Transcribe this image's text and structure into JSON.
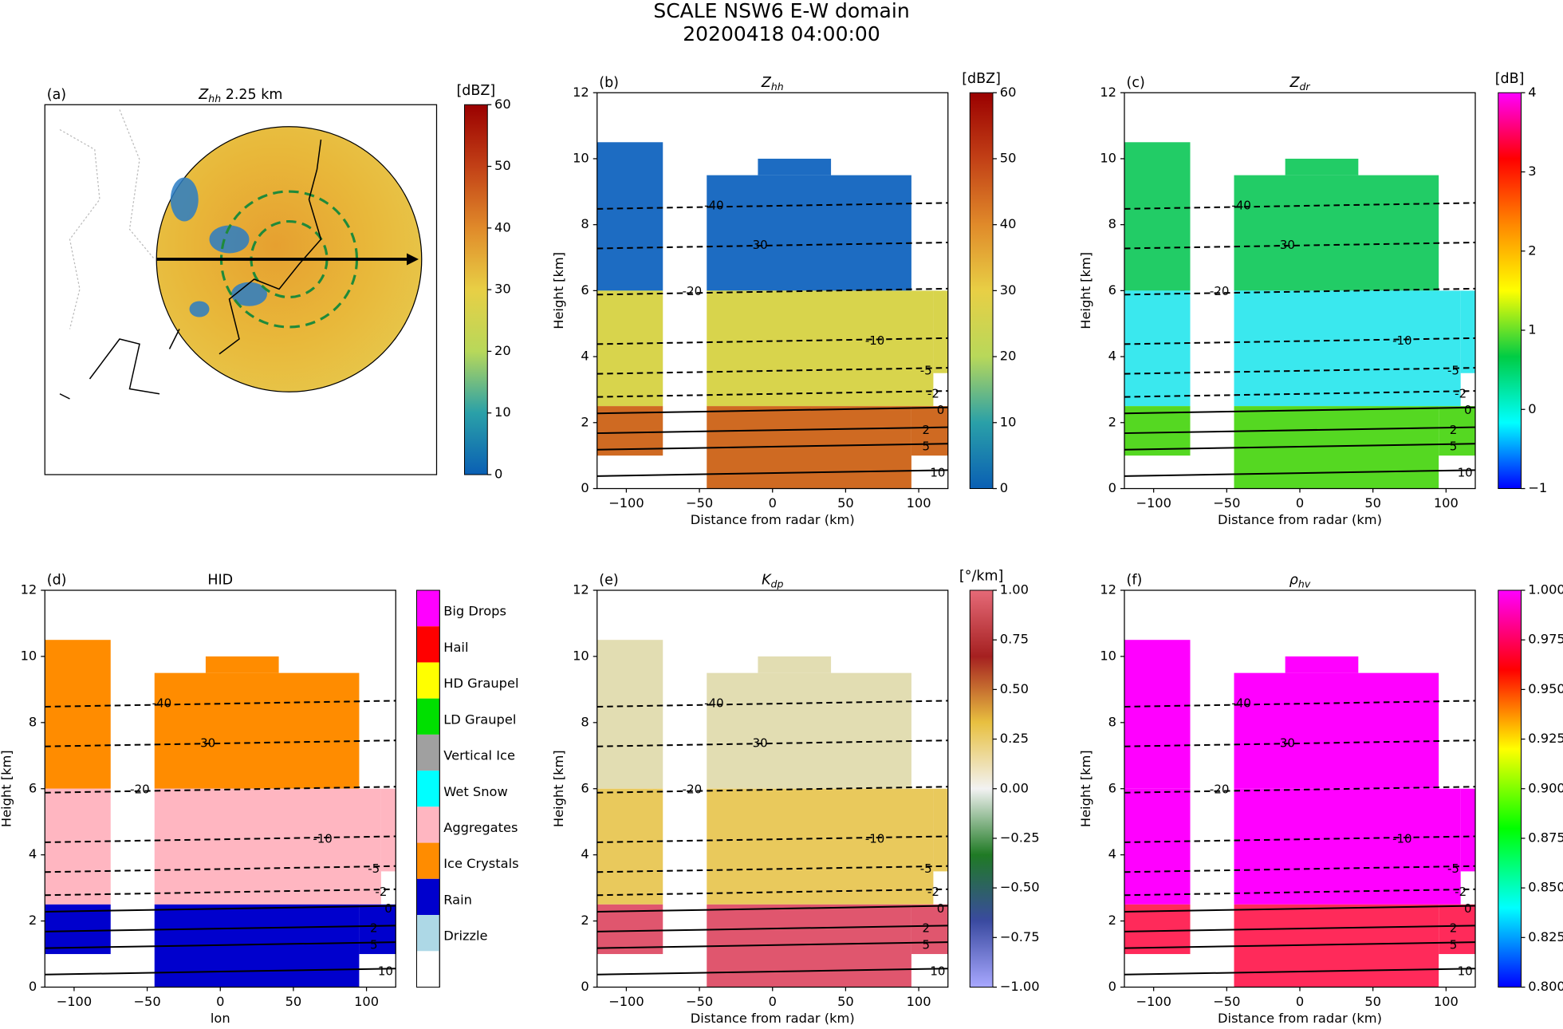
{
  "title": "SCALE NSW6 E-W domain",
  "subtitle": "20200418 04:00:00",
  "contours": [
    {
      "level": -40,
      "height": 8.6
    },
    {
      "level": -30,
      "height": 7.4
    },
    {
      "level": -20,
      "height": 6.0
    },
    {
      "level": -10,
      "height": 4.5
    },
    {
      "level": -5,
      "height": 3.6
    },
    {
      "level": -2,
      "height": 2.9
    },
    {
      "level": 0,
      "height": 2.4
    },
    {
      "level": 2,
      "height": 1.8
    },
    {
      "level": 5,
      "height": 1.3
    },
    {
      "level": 10,
      "height": 0.5
    }
  ],
  "chart_data": [
    {
      "type": "map",
      "label": "(a)",
      "title": "Z",
      "title_sub": "hh",
      "title_after": " 2.25 km",
      "colorbar": {
        "unit": "[dBZ]",
        "lim": [
          0,
          60
        ],
        "ticks": [
          0,
          10,
          20,
          30,
          40,
          50,
          60
        ],
        "colormap": [
          "#0a5fb4",
          "#2aa0a8",
          "#b8d85a",
          "#e8cf45",
          "#e08a2a",
          "#c24016",
          "#9a0000"
        ]
      }
    },
    {
      "type": "heatmap",
      "label": "(b)",
      "title": "Z",
      "title_sub": "hh",
      "xlabel": "Distance from radar (km)",
      "ylabel": "Height [km]",
      "xlim": [
        -120,
        120
      ],
      "xticks": [
        {
          "value": -100,
          "label": "−100"
        },
        {
          "value": -50,
          "label": "−50"
        },
        0,
        50,
        100
      ],
      "ylim": [
        0,
        12
      ],
      "yticks": [
        0,
        2,
        4,
        6,
        8,
        10,
        12
      ],
      "field_colors": [
        "#1d6cc2",
        "#d8d44c",
        "#cf6a22"
      ],
      "colorbar": {
        "unit": "[dBZ]",
        "lim": [
          0,
          60
        ],
        "ticks": [
          0,
          10,
          20,
          30,
          40,
          50,
          60
        ],
        "colormap": [
          "#0a5fb4",
          "#2aa0a8",
          "#b8d85a",
          "#e8cf45",
          "#e08a2a",
          "#c24016",
          "#9a0000"
        ]
      }
    },
    {
      "type": "heatmap",
      "label": "(c)",
      "title": "Z",
      "title_sub": "dr",
      "xlabel": "Distance from radar (km)",
      "ylabel": "Height [km]",
      "xlim": [
        -120,
        120
      ],
      "xticks": [
        {
          "value": -100,
          "label": "−100"
        },
        {
          "value": -50,
          "label": "−50"
        },
        0,
        50,
        100
      ],
      "ylim": [
        0,
        12
      ],
      "yticks": [
        0,
        2,
        4,
        6,
        8,
        10,
        12
      ],
      "field_colors": [
        "#22cc66",
        "#3ae8ee",
        "#55d822"
      ],
      "colorbar": {
        "unit": "[dB]",
        "lim": [
          -1,
          4
        ],
        "ticks": [
          {
            "value": -1,
            "label": "−1"
          },
          0,
          1,
          2,
          3,
          4
        ],
        "colormap": [
          "#0000ff",
          "#00ffff",
          "#00cc44",
          "#ffff00",
          "#ff8800",
          "#ff0000",
          "#ff00ff"
        ]
      }
    },
    {
      "type": "hid",
      "label": "(d)",
      "title": "HID",
      "xlabel": "lon",
      "ylabel": "Height [km]",
      "xlim": [
        -120,
        120
      ],
      "xticks": [
        {
          "value": -100,
          "label": "−100"
        },
        {
          "value": -50,
          "label": "−50"
        },
        0,
        50,
        100
      ],
      "ylim": [
        0,
        12
      ],
      "yticks": [
        0,
        2,
        4,
        6,
        8,
        10,
        12
      ],
      "field_colors": [
        "#ff8c00",
        "#ffb6c1",
        "#0000cd"
      ],
      "legend": {
        "categories": [
          "Big Drops",
          "Hail",
          "HD Graupel",
          "LD Graupel",
          "Vertical Ice",
          "Wet Snow",
          "Aggregates",
          "Ice Crystals",
          "Rain",
          "Drizzle"
        ],
        "colors": [
          "#ff00ff",
          "#ff0000",
          "#ffff00",
          "#00e000",
          "#a0a0a0",
          "#00ffff",
          "#ffb6c1",
          "#ff8c00",
          "#0000cd",
          "#add8e6"
        ]
      }
    },
    {
      "type": "heatmap",
      "label": "(e)",
      "title": "K",
      "title_sub": "dp",
      "xlabel": "Distance from radar (km)",
      "ylabel": "Height [km]",
      "xlim": [
        -120,
        120
      ],
      "xticks": [
        {
          "value": -100,
          "label": "−100"
        },
        {
          "value": -50,
          "label": "−50"
        },
        0,
        50,
        100
      ],
      "ylim": [
        0,
        12
      ],
      "yticks": [
        0,
        2,
        4,
        6,
        8,
        10,
        12
      ],
      "field_colors": [
        "#e2ddb2",
        "#e9c95c",
        "#e0566e"
      ],
      "colorbar": {
        "unit": "[°/km]",
        "lim": [
          -1,
          1
        ],
        "ticks": [
          {
            "value": -1,
            "label": "−1.00"
          },
          {
            "value": -0.75,
            "label": "−0.75"
          },
          {
            "value": -0.5,
            "label": "−0.50"
          },
          {
            "value": -0.25,
            "label": "−0.25"
          },
          {
            "value": 0,
            "label": "0.00"
          },
          {
            "value": 0.25,
            "label": "0.25"
          },
          {
            "value": 0.5,
            "label": "0.50"
          },
          {
            "value": 0.75,
            "label": "0.75"
          },
          {
            "value": 1,
            "label": "1.00"
          }
        ],
        "colormap": [
          "#a8a8ff",
          "#3a4aa0",
          "#1f7a24",
          "#f2f2f2",
          "#e8c040",
          "#a52020",
          "#e66a78"
        ]
      }
    },
    {
      "type": "heatmap",
      "label": "(f)",
      "title": "ρ",
      "title_sub": "hv",
      "xlabel": "Distance from radar (km)",
      "ylabel": "Height [km]",
      "xlim": [
        -120,
        120
      ],
      "xticks": [
        {
          "value": -100,
          "label": "−100"
        },
        {
          "value": -50,
          "label": "−50"
        },
        0,
        50,
        100
      ],
      "ylim": [
        0,
        12
      ],
      "yticks": [
        0,
        2,
        4,
        6,
        8,
        10,
        12
      ],
      "field_colors": [
        "#ff00ff",
        "#ff00ff",
        "#ff2a5a"
      ],
      "colorbar": {
        "lim": [
          0.8,
          1
        ],
        "ticks": [
          {
            "value": 0.8,
            "label": "0.800"
          },
          {
            "value": 0.825,
            "label": "0.825"
          },
          {
            "value": 0.85,
            "label": "0.850"
          },
          {
            "value": 0.875,
            "label": "0.875"
          },
          {
            "value": 0.9,
            "label": "0.900"
          },
          {
            "value": 0.925,
            "label": "0.925"
          },
          {
            "value": 0.95,
            "label": "0.950"
          },
          {
            "value": 0.975,
            "label": "0.975"
          },
          {
            "value": 1,
            "label": "1.000"
          }
        ],
        "colormap": [
          "#0000ff",
          "#00ffff",
          "#00ff00",
          "#ffff00",
          "#ff0000",
          "#ff00ff"
        ]
      }
    }
  ]
}
